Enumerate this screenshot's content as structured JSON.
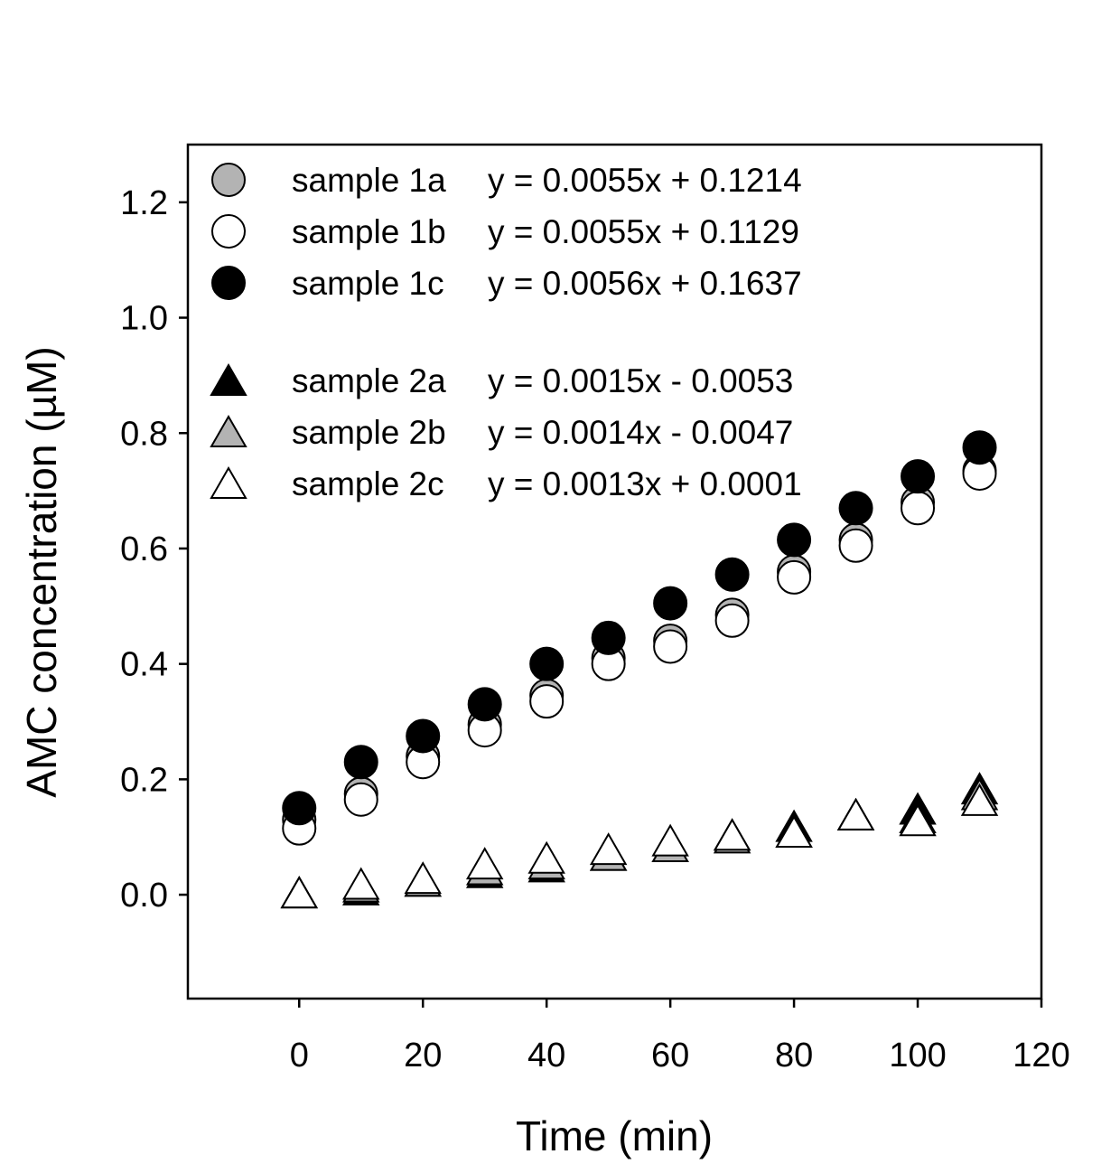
{
  "chart_data": {
    "type": "scatter",
    "xlabel": "Time (min)",
    "ylabel": "AMC concentration (µM)",
    "xlim": [
      -18,
      120
    ],
    "ylim": [
      -0.18,
      1.3
    ],
    "x_ticks": [
      0,
      20,
      40,
      60,
      80,
      100,
      120
    ],
    "y_ticks": [
      0.0,
      0.2,
      0.4,
      0.6,
      0.8,
      1.0,
      1.2
    ],
    "x_tick_labels": [
      "0",
      "20",
      "40",
      "60",
      "80",
      "100",
      "120"
    ],
    "y_tick_labels": [
      "0.0",
      "0.2",
      "0.4",
      "0.6",
      "0.8",
      "1.0",
      "1.2"
    ],
    "grid": false,
    "legend_position": "top-left",
    "x": [
      0,
      10,
      20,
      30,
      40,
      50,
      60,
      70,
      80,
      90,
      100,
      110
    ],
    "series": [
      {
        "name": "sample 1a",
        "equation": "y = 0.0055x + 0.1214",
        "marker": "circle",
        "fill": "#b3b3b3",
        "values": [
          0.13,
          0.175,
          0.24,
          0.295,
          0.345,
          0.41,
          0.44,
          0.485,
          0.56,
          0.615,
          0.68,
          0.735
        ]
      },
      {
        "name": "sample 1b",
        "equation": "y = 0.0055x + 0.1129",
        "marker": "circle",
        "fill": "#ffffff",
        "values": [
          0.115,
          0.165,
          0.23,
          0.285,
          0.335,
          0.4,
          0.43,
          0.475,
          0.55,
          0.605,
          0.67,
          0.73
        ]
      },
      {
        "name": "sample 1c",
        "equation": "y = 0.0056x + 0.1637",
        "marker": "circle",
        "fill": "#000000",
        "values": [
          0.15,
          0.23,
          0.275,
          0.33,
          0.4,
          0.445,
          0.505,
          0.555,
          0.615,
          0.67,
          0.725,
          0.775
        ]
      },
      {
        "name": "sample 2a",
        "equation": "y = 0.0015x - 0.0053",
        "marker": "triangle",
        "fill": "#000000",
        "values": [
          0.0,
          0.005,
          0.02,
          0.035,
          0.045,
          0.065,
          0.08,
          0.1,
          0.115,
          0.135,
          0.145,
          0.18
        ]
      },
      {
        "name": "sample 2b",
        "equation": "y = 0.0014x - 0.0047",
        "marker": "triangle",
        "fill": "#b3b3b3",
        "values": [
          0.0,
          0.01,
          0.02,
          0.04,
          0.05,
          0.065,
          0.08,
          0.095,
          0.105,
          0.135,
          0.13,
          0.17
        ]
      },
      {
        "name": "sample 2c",
        "equation": "y = 0.0013x + 0.0001",
        "marker": "triangle",
        "fill": "#ffffff",
        "values": [
          0.0,
          0.015,
          0.025,
          0.05,
          0.06,
          0.075,
          0.09,
          0.1,
          0.105,
          0.135,
          0.125,
          0.16
        ]
      }
    ]
  }
}
